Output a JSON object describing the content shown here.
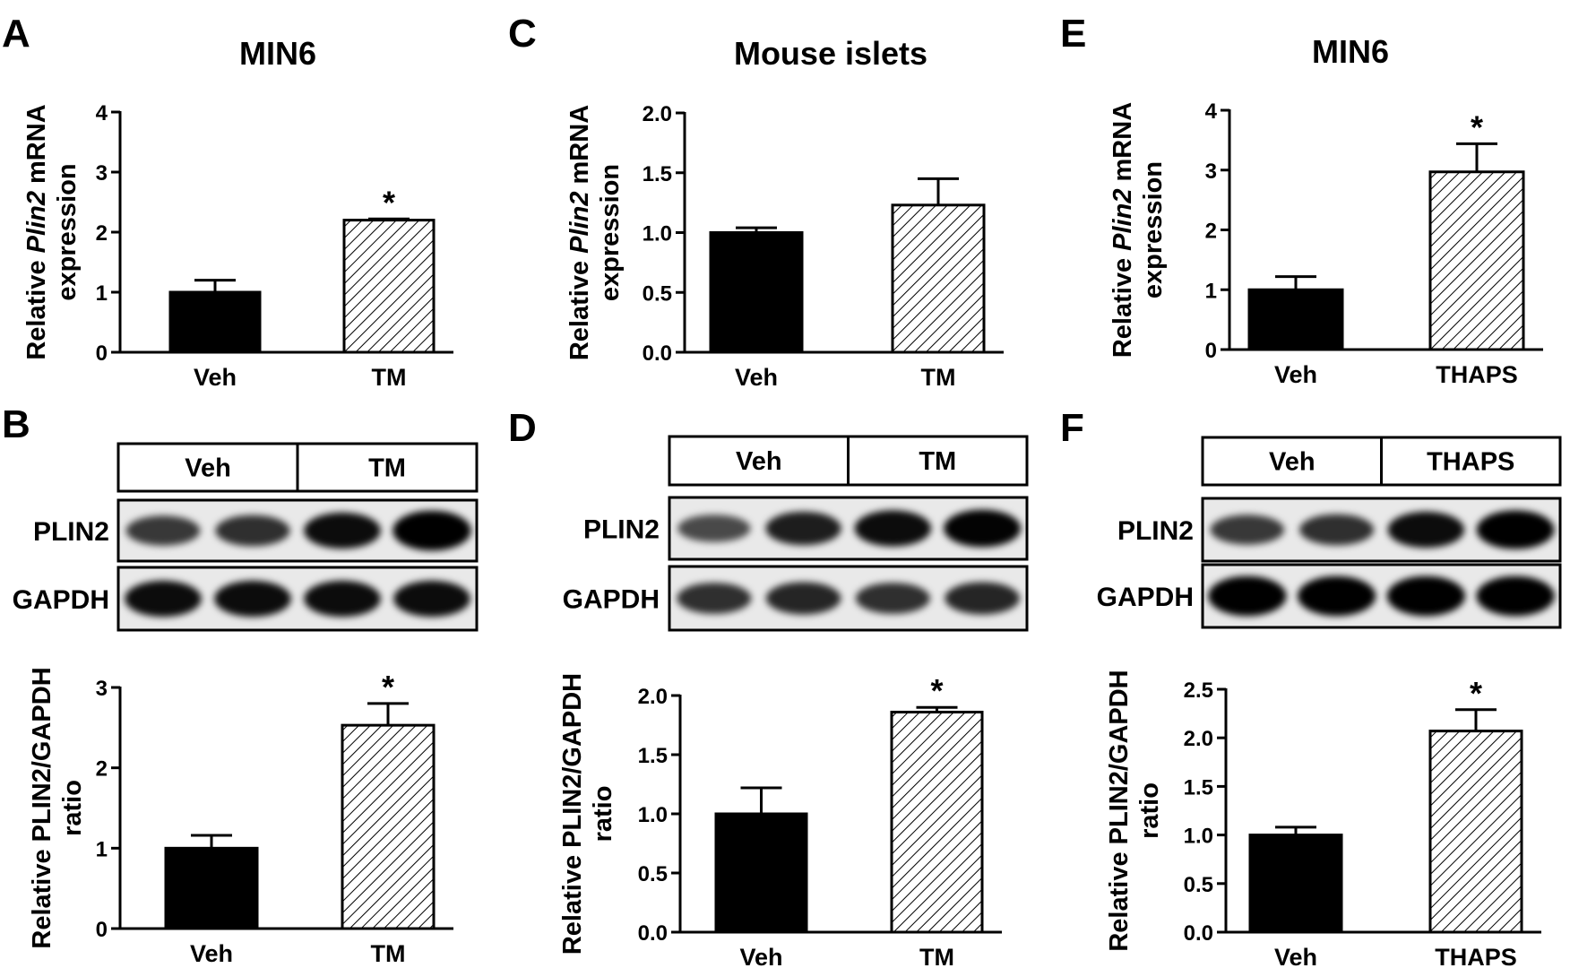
{
  "colors": {
    "veh_fill": "#000000",
    "treatment_fill": "hatched",
    "axis": "#000000"
  },
  "chart_data": [
    {
      "panel": "A",
      "type": "bar",
      "title": "MIN6",
      "ylabel": {
        "prefix": "Relative ",
        "gene": "Plin2",
        "suffix": " mRNA",
        "line2": "expression"
      },
      "ylim": [
        0,
        4
      ],
      "yticks": [
        "0",
        "1",
        "2",
        "3",
        "4"
      ],
      "ytick_values": [
        0,
        1,
        2,
        3,
        4
      ],
      "categories": [
        "Veh",
        "TM"
      ],
      "values": [
        1.0,
        2.2
      ],
      "errors": [
        0.2,
        0.02
      ],
      "significance": [
        "",
        "*"
      ]
    },
    {
      "panel": "C",
      "type": "bar",
      "title": "Mouse islets",
      "ylabel": {
        "prefix": "Relative ",
        "gene": "Plin2",
        "suffix": " mRNA",
        "line2": "expression"
      },
      "ylim": [
        0,
        2.0
      ],
      "yticks": [
        "0.0",
        "0.5",
        "1.0",
        "1.5",
        "2.0"
      ],
      "ytick_values": [
        0,
        0.5,
        1,
        1.5,
        2
      ],
      "categories": [
        "Veh",
        "TM"
      ],
      "values": [
        1.0,
        1.23
      ],
      "errors": [
        0.04,
        0.22
      ],
      "significance": [
        "",
        ""
      ]
    },
    {
      "panel": "E",
      "type": "bar",
      "title": "MIN6",
      "ylabel": {
        "prefix": "Relative ",
        "gene": "Plin2",
        "suffix": " mRNA",
        "line2": "expression"
      },
      "ylim": [
        0,
        4
      ],
      "yticks": [
        "0",
        "1",
        "2",
        "3",
        "4"
      ],
      "ytick_values": [
        0,
        1,
        2,
        3,
        4
      ],
      "categories": [
        "Veh",
        "THAPS"
      ],
      "values": [
        1.0,
        2.97
      ],
      "errors": [
        0.22,
        0.47
      ],
      "significance": [
        "",
        "*"
      ]
    },
    {
      "panel": "B",
      "type": "bar",
      "title": "",
      "ylabel": {
        "prefix": "Relative PLIN2/GAPDH",
        "gene": "",
        "suffix": "",
        "line2": "ratio"
      },
      "ylim": [
        0,
        3
      ],
      "yticks": [
        "0",
        "1",
        "2",
        "3"
      ],
      "ytick_values": [
        0,
        1,
        2,
        3
      ],
      "categories": [
        "Veh",
        "TM"
      ],
      "values": [
        1.0,
        2.53
      ],
      "errors": [
        0.16,
        0.27
      ],
      "significance": [
        "",
        "*"
      ]
    },
    {
      "panel": "D",
      "type": "bar",
      "title": "",
      "ylabel": {
        "prefix": "Relative PLIN2/GAPDH",
        "gene": "",
        "suffix": "",
        "line2": "ratio"
      },
      "ylim": [
        0,
        2.0
      ],
      "yticks": [
        "0.0",
        "0.5",
        "1.0",
        "1.5",
        "2.0"
      ],
      "ytick_values": [
        0,
        0.5,
        1,
        1.5,
        2
      ],
      "categories": [
        "Veh",
        "TM"
      ],
      "values": [
        1.0,
        1.86
      ],
      "errors": [
        0.22,
        0.04
      ],
      "significance": [
        "",
        "*"
      ]
    },
    {
      "panel": "F",
      "type": "bar",
      "title": "",
      "ylabel": {
        "prefix": "Relative PLIN2/GAPDH",
        "gene": "",
        "suffix": "",
        "line2": "ratio"
      },
      "ylim": [
        0,
        2.5
      ],
      "yticks": [
        "0.0",
        "0.5",
        "1.0",
        "1.5",
        "2.0",
        "2.5"
      ],
      "ytick_values": [
        0,
        0.5,
        1,
        1.5,
        2,
        2.5
      ],
      "categories": [
        "Veh",
        "THAPS"
      ],
      "values": [
        1.0,
        2.07
      ],
      "errors": [
        0.08,
        0.22
      ],
      "significance": [
        "",
        "*"
      ]
    }
  ],
  "blots": [
    {
      "panel": "B",
      "groups": [
        "Veh",
        "TM"
      ],
      "rows": [
        "PLIN2",
        "GAPDH"
      ],
      "band_intensity": {
        "PLIN2": [
          0.55,
          0.6,
          0.8,
          0.95
        ],
        "GAPDH": [
          0.8,
          0.8,
          0.8,
          0.8
        ]
      }
    },
    {
      "panel": "D",
      "groups": [
        "Veh",
        "TM"
      ],
      "rows": [
        "PLIN2",
        "GAPDH"
      ],
      "band_intensity": {
        "PLIN2": [
          0.45,
          0.7,
          0.8,
          0.85
        ],
        "GAPDH": [
          0.6,
          0.65,
          0.6,
          0.65
        ]
      }
    },
    {
      "panel": "F",
      "groups": [
        "Veh",
        "THAPS"
      ],
      "rows": [
        "PLIN2",
        "GAPDH"
      ],
      "band_intensity": {
        "PLIN2": [
          0.55,
          0.6,
          0.8,
          0.9
        ],
        "GAPDH": [
          0.95,
          0.95,
          0.95,
          0.95
        ]
      }
    }
  ]
}
